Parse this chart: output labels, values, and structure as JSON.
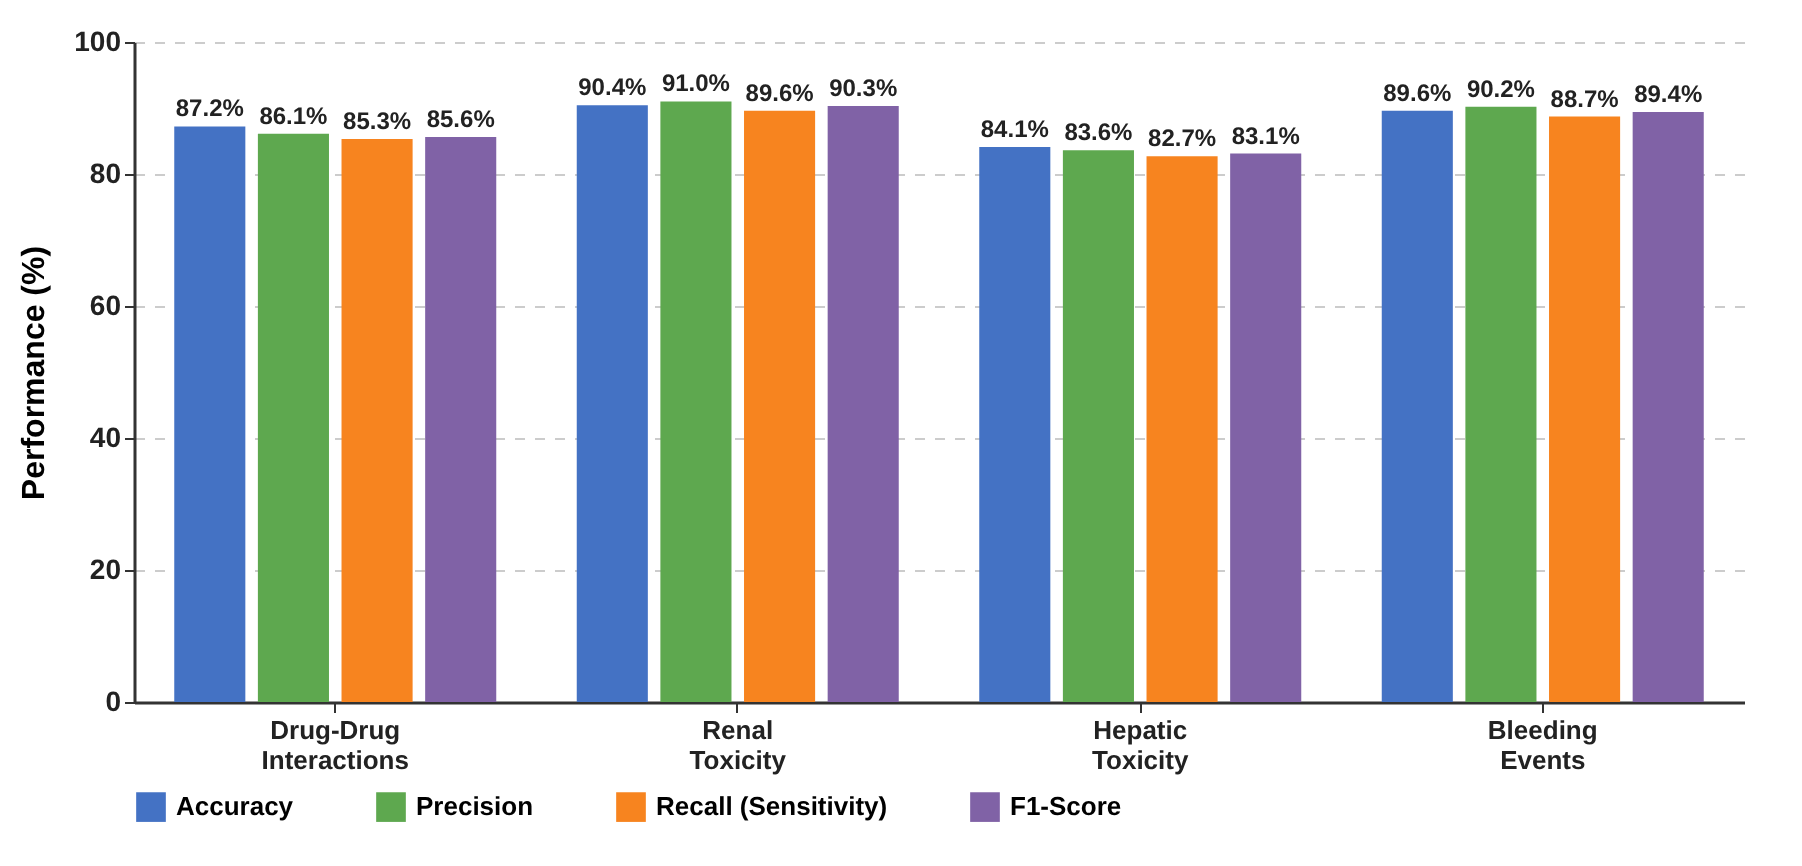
{
  "chart_data": {
    "type": "bar",
    "ylabel": "Performance (%)",
    "categories": [
      "Drug-Drug Interactions",
      "Renal Toxicity",
      "Hepatic Toxicity",
      "Bleeding Events"
    ],
    "series": [
      {
        "name": "Accuracy",
        "color": "#4472c4",
        "values": [
          87.2,
          90.4,
          84.1,
          89.6
        ],
        "value_labels": [
          "87.2%",
          "90.4%",
          "84.1%",
          "89.6%"
        ]
      },
      {
        "name": "Precision",
        "color": "#5ea84f",
        "values": [
          86.1,
          91.0,
          83.6,
          90.2
        ],
        "value_labels": [
          "86.1%",
          "91.0%",
          "83.6%",
          "90.2%"
        ]
      },
      {
        "name": "Recall (Sensitivity)",
        "color": "#f7841f",
        "values": [
          85.3,
          89.6,
          82.7,
          88.7
        ],
        "value_labels": [
          "85.3%",
          "89.6%",
          "82.7%",
          "88.7%"
        ]
      },
      {
        "name": "F1-Score",
        "color": "#8062a6",
        "values": [
          85.6,
          90.3,
          83.1,
          89.4
        ],
        "value_labels": [
          "85.6%",
          "90.3%",
          "83.1%",
          "89.4%"
        ]
      }
    ],
    "ylim": [
      0,
      100
    ],
    "yticks": [
      0,
      20,
      40,
      60,
      80,
      100
    ],
    "grid": "y",
    "legend": "bottom"
  }
}
